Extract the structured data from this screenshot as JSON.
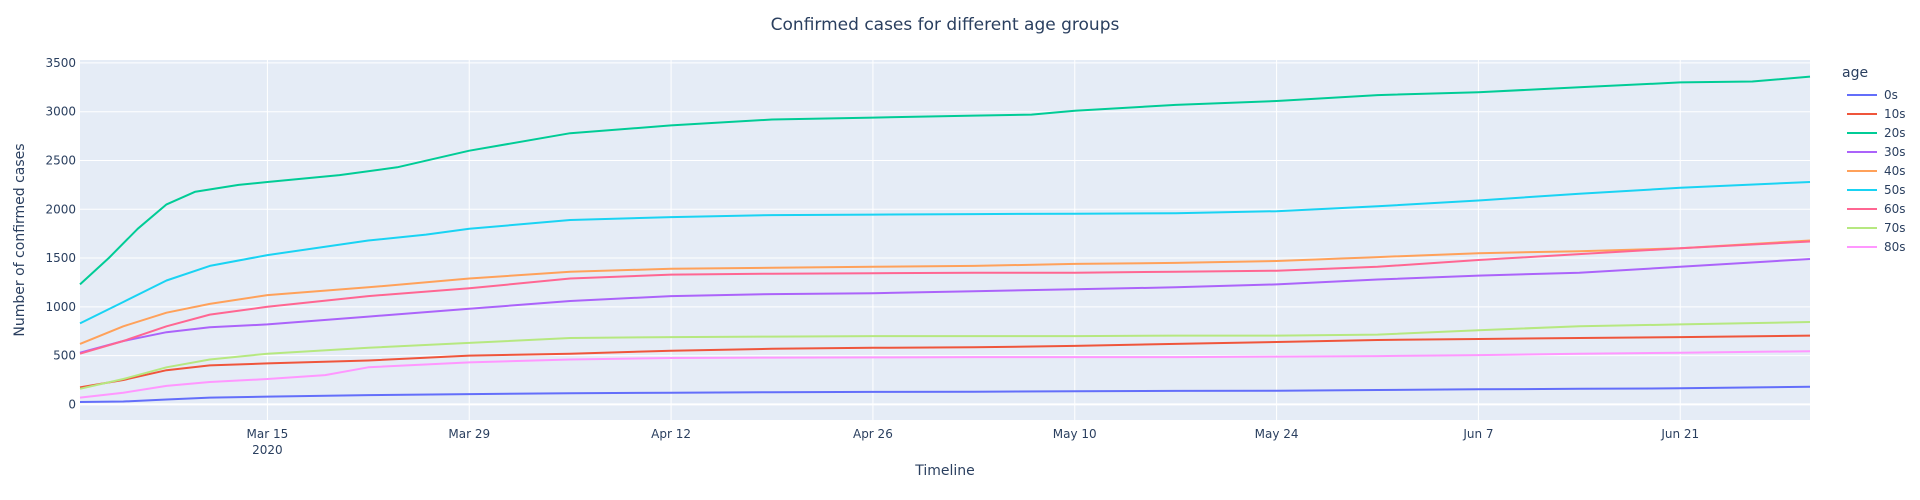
{
  "chart_data": {
    "type": "line",
    "title": "Confirmed cases for different age groups",
    "xlabel": "Timeline",
    "ylabel": "Number of confirmed cases",
    "legend_title": "age",
    "legend_position": "right",
    "grid": true,
    "x_range": [
      "2020-03-02",
      "2020-06-30"
    ],
    "ylim": [
      -160,
      3530
    ],
    "y_ticks": [
      0,
      500,
      1000,
      1500,
      2000,
      2500,
      3000,
      3500
    ],
    "x_ticks": [
      {
        "date": "2020-03-15",
        "label": "Mar 15",
        "sublabel": "2020"
      },
      {
        "date": "2020-03-29",
        "label": "Mar 29",
        "sublabel": ""
      },
      {
        "date": "2020-04-12",
        "label": "Apr 12",
        "sublabel": ""
      },
      {
        "date": "2020-04-26",
        "label": "Apr 26",
        "sublabel": ""
      },
      {
        "date": "2020-05-10",
        "label": "May 10",
        "sublabel": ""
      },
      {
        "date": "2020-05-24",
        "label": "May 24",
        "sublabel": ""
      },
      {
        "date": "2020-06-07",
        "label": "Jun 7",
        "sublabel": ""
      },
      {
        "date": "2020-06-21",
        "label": "Jun 21",
        "sublabel": ""
      }
    ],
    "series": [
      {
        "name": "0s",
        "color": "#636efa",
        "points": [
          [
            "2020-03-02",
            25
          ],
          [
            "2020-03-05",
            30
          ],
          [
            "2020-03-08",
            50
          ],
          [
            "2020-03-11",
            70
          ],
          [
            "2020-03-15",
            80
          ],
          [
            "2020-03-22",
            95
          ],
          [
            "2020-03-29",
            105
          ],
          [
            "2020-04-05",
            115
          ],
          [
            "2020-04-12",
            120
          ],
          [
            "2020-04-19",
            125
          ],
          [
            "2020-04-26",
            128
          ],
          [
            "2020-05-03",
            130
          ],
          [
            "2020-05-10",
            135
          ],
          [
            "2020-05-17",
            138
          ],
          [
            "2020-05-24",
            140
          ],
          [
            "2020-05-31",
            148
          ],
          [
            "2020-06-07",
            155
          ],
          [
            "2020-06-14",
            160
          ],
          [
            "2020-06-21",
            165
          ],
          [
            "2020-06-30",
            180
          ]
        ]
      },
      {
        "name": "10s",
        "color": "#ef553b",
        "points": [
          [
            "2020-03-02",
            175
          ],
          [
            "2020-03-05",
            250
          ],
          [
            "2020-03-08",
            350
          ],
          [
            "2020-03-11",
            400
          ],
          [
            "2020-03-15",
            420
          ],
          [
            "2020-03-22",
            450
          ],
          [
            "2020-03-29",
            500
          ],
          [
            "2020-04-05",
            520
          ],
          [
            "2020-04-12",
            550
          ],
          [
            "2020-04-19",
            570
          ],
          [
            "2020-04-26",
            580
          ],
          [
            "2020-05-03",
            585
          ],
          [
            "2020-05-10",
            600
          ],
          [
            "2020-05-17",
            620
          ],
          [
            "2020-05-24",
            640
          ],
          [
            "2020-05-31",
            660
          ],
          [
            "2020-06-07",
            670
          ],
          [
            "2020-06-14",
            680
          ],
          [
            "2020-06-21",
            690
          ],
          [
            "2020-06-30",
            705
          ]
        ]
      },
      {
        "name": "20s",
        "color": "#00cc96",
        "points": [
          [
            "2020-03-02",
            1230
          ],
          [
            "2020-03-04",
            1500
          ],
          [
            "2020-03-06",
            1800
          ],
          [
            "2020-03-08",
            2050
          ],
          [
            "2020-03-10",
            2180
          ],
          [
            "2020-03-13",
            2250
          ],
          [
            "2020-03-15",
            2280
          ],
          [
            "2020-03-20",
            2350
          ],
          [
            "2020-03-24",
            2430
          ],
          [
            "2020-03-29",
            2600
          ],
          [
            "2020-04-05",
            2780
          ],
          [
            "2020-04-12",
            2860
          ],
          [
            "2020-04-19",
            2920
          ],
          [
            "2020-04-26",
            2940
          ],
          [
            "2020-05-03",
            2960
          ],
          [
            "2020-05-07",
            2970
          ],
          [
            "2020-05-10",
            3010
          ],
          [
            "2020-05-17",
            3070
          ],
          [
            "2020-05-24",
            3110
          ],
          [
            "2020-05-31",
            3170
          ],
          [
            "2020-06-07",
            3200
          ],
          [
            "2020-06-14",
            3250
          ],
          [
            "2020-06-21",
            3300
          ],
          [
            "2020-06-26",
            3310
          ],
          [
            "2020-06-30",
            3360
          ]
        ]
      },
      {
        "name": "30s",
        "color": "#ab63fa",
        "points": [
          [
            "2020-03-02",
            530
          ],
          [
            "2020-03-05",
            650
          ],
          [
            "2020-03-08",
            740
          ],
          [
            "2020-03-11",
            790
          ],
          [
            "2020-03-15",
            820
          ],
          [
            "2020-03-22",
            900
          ],
          [
            "2020-03-29",
            980
          ],
          [
            "2020-04-05",
            1060
          ],
          [
            "2020-04-12",
            1110
          ],
          [
            "2020-04-19",
            1130
          ],
          [
            "2020-04-26",
            1140
          ],
          [
            "2020-05-03",
            1160
          ],
          [
            "2020-05-10",
            1180
          ],
          [
            "2020-05-17",
            1200
          ],
          [
            "2020-05-24",
            1230
          ],
          [
            "2020-05-31",
            1280
          ],
          [
            "2020-06-07",
            1320
          ],
          [
            "2020-06-14",
            1350
          ],
          [
            "2020-06-21",
            1410
          ],
          [
            "2020-06-30",
            1490
          ]
        ]
      },
      {
        "name": "40s",
        "color": "#ffa15a",
        "points": [
          [
            "2020-03-02",
            620
          ],
          [
            "2020-03-05",
            800
          ],
          [
            "2020-03-08",
            940
          ],
          [
            "2020-03-11",
            1030
          ],
          [
            "2020-03-15",
            1120
          ],
          [
            "2020-03-22",
            1200
          ],
          [
            "2020-03-29",
            1290
          ],
          [
            "2020-04-05",
            1360
          ],
          [
            "2020-04-12",
            1390
          ],
          [
            "2020-04-19",
            1400
          ],
          [
            "2020-04-26",
            1410
          ],
          [
            "2020-05-03",
            1420
          ],
          [
            "2020-05-10",
            1440
          ],
          [
            "2020-05-17",
            1450
          ],
          [
            "2020-05-24",
            1470
          ],
          [
            "2020-05-31",
            1510
          ],
          [
            "2020-06-07",
            1550
          ],
          [
            "2020-06-14",
            1570
          ],
          [
            "2020-06-21",
            1600
          ],
          [
            "2020-06-30",
            1680
          ]
        ]
      },
      {
        "name": "50s",
        "color": "#19d3f3",
        "points": [
          [
            "2020-03-02",
            830
          ],
          [
            "2020-03-05",
            1050
          ],
          [
            "2020-03-08",
            1270
          ],
          [
            "2020-03-11",
            1420
          ],
          [
            "2020-03-15",
            1530
          ],
          [
            "2020-03-22",
            1680
          ],
          [
            "2020-03-26",
            1740
          ],
          [
            "2020-03-29",
            1800
          ],
          [
            "2020-04-05",
            1890
          ],
          [
            "2020-04-12",
            1920
          ],
          [
            "2020-04-19",
            1940
          ],
          [
            "2020-04-26",
            1945
          ],
          [
            "2020-05-03",
            1950
          ],
          [
            "2020-05-10",
            1955
          ],
          [
            "2020-05-17",
            1960
          ],
          [
            "2020-05-24",
            1980
          ],
          [
            "2020-05-31",
            2030
          ],
          [
            "2020-06-07",
            2090
          ],
          [
            "2020-06-14",
            2160
          ],
          [
            "2020-06-21",
            2220
          ],
          [
            "2020-06-30",
            2280
          ]
        ]
      },
      {
        "name": "60s",
        "color": "#ff6692",
        "points": [
          [
            "2020-03-02",
            520
          ],
          [
            "2020-03-05",
            650
          ],
          [
            "2020-03-08",
            800
          ],
          [
            "2020-03-11",
            920
          ],
          [
            "2020-03-15",
            1000
          ],
          [
            "2020-03-22",
            1110
          ],
          [
            "2020-03-29",
            1190
          ],
          [
            "2020-04-05",
            1290
          ],
          [
            "2020-04-12",
            1330
          ],
          [
            "2020-04-19",
            1340
          ],
          [
            "2020-04-26",
            1345
          ],
          [
            "2020-05-03",
            1350
          ],
          [
            "2020-05-10",
            1350
          ],
          [
            "2020-05-17",
            1360
          ],
          [
            "2020-05-24",
            1370
          ],
          [
            "2020-05-31",
            1410
          ],
          [
            "2020-06-07",
            1480
          ],
          [
            "2020-06-14",
            1540
          ],
          [
            "2020-06-21",
            1600
          ],
          [
            "2020-06-30",
            1670
          ]
        ]
      },
      {
        "name": "70s",
        "color": "#b6e880",
        "points": [
          [
            "2020-03-02",
            160
          ],
          [
            "2020-03-05",
            260
          ],
          [
            "2020-03-08",
            380
          ],
          [
            "2020-03-11",
            460
          ],
          [
            "2020-03-15",
            520
          ],
          [
            "2020-03-22",
            580
          ],
          [
            "2020-03-29",
            630
          ],
          [
            "2020-04-05",
            680
          ],
          [
            "2020-04-12",
            690
          ],
          [
            "2020-04-19",
            695
          ],
          [
            "2020-04-26",
            700
          ],
          [
            "2020-05-03",
            700
          ],
          [
            "2020-05-10",
            700
          ],
          [
            "2020-05-17",
            705
          ],
          [
            "2020-05-24",
            705
          ],
          [
            "2020-05-31",
            715
          ],
          [
            "2020-06-07",
            760
          ],
          [
            "2020-06-14",
            800
          ],
          [
            "2020-06-21",
            820
          ],
          [
            "2020-06-30",
            845
          ]
        ]
      },
      {
        "name": "80s",
        "color": "#ff97ff",
        "points": [
          [
            "2020-03-02",
            70
          ],
          [
            "2020-03-05",
            120
          ],
          [
            "2020-03-08",
            190
          ],
          [
            "2020-03-11",
            230
          ],
          [
            "2020-03-15",
            260
          ],
          [
            "2020-03-19",
            300
          ],
          [
            "2020-03-22",
            380
          ],
          [
            "2020-03-29",
            430
          ],
          [
            "2020-04-05",
            460
          ],
          [
            "2020-04-12",
            475
          ],
          [
            "2020-04-19",
            480
          ],
          [
            "2020-04-26",
            482
          ],
          [
            "2020-05-03",
            485
          ],
          [
            "2020-05-10",
            485
          ],
          [
            "2020-05-17",
            485
          ],
          [
            "2020-05-24",
            490
          ],
          [
            "2020-05-31",
            495
          ],
          [
            "2020-06-07",
            505
          ],
          [
            "2020-06-14",
            520
          ],
          [
            "2020-06-21",
            530
          ],
          [
            "2020-06-30",
            545
          ]
        ]
      }
    ]
  }
}
